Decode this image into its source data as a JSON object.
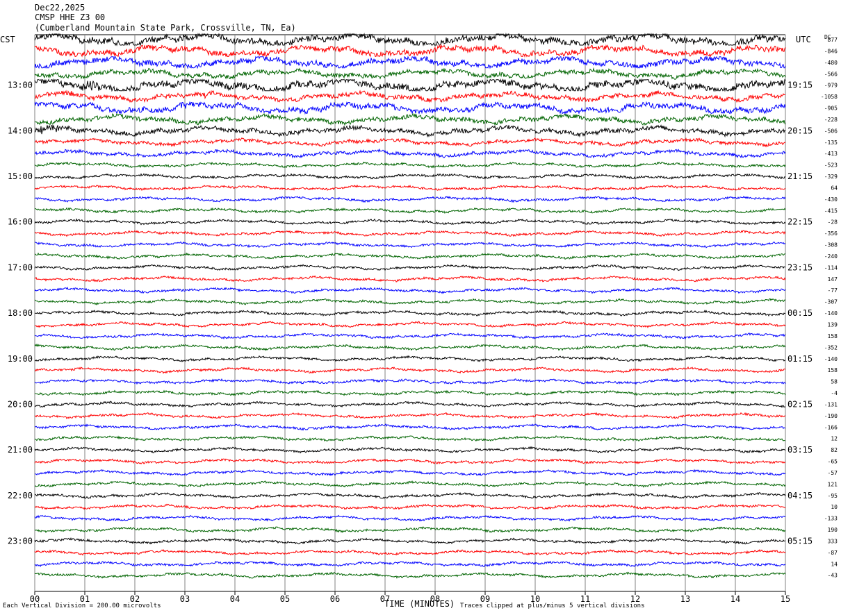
{
  "header": {
    "date": "Dec22,2025",
    "station": "CMSP HHE Z3 00",
    "location": "(Cumberland Mountain State Park, Crossville, TN, Ea)"
  },
  "left_tz": "CST",
  "right_tz": "UTC",
  "dc_label": "DC",
  "footer": {
    "scale_note": "Each Vertical Division =  200.00 microvolts",
    "x_title": "TIME (MINUTES)",
    "clip_note": "Traces clipped at plus/minus 5 vertical divisions"
  },
  "colors": {
    "cycle": [
      "#000000",
      "#ff0000",
      "#0000ff",
      "#006400"
    ],
    "grid": "#808080"
  },
  "chart_data": {
    "type": "line",
    "title": "CMSP HHE Z3 00",
    "xlabel": "TIME (MINUTES)",
    "xlim": [
      0,
      15
    ],
    "x_ticks": [
      "00",
      "01",
      "02",
      "03",
      "04",
      "05",
      "06",
      "07",
      "08",
      "09",
      "10",
      "11",
      "12",
      "13",
      "14",
      "15"
    ],
    "trace_count": 48,
    "left_hour_labels": [
      {
        "trace": 4,
        "label": "13:00"
      },
      {
        "trace": 8,
        "label": "14:00"
      },
      {
        "trace": 12,
        "label": "15:00"
      },
      {
        "trace": 16,
        "label": "16:00"
      },
      {
        "trace": 20,
        "label": "17:00"
      },
      {
        "trace": 24,
        "label": "18:00"
      },
      {
        "trace": 28,
        "label": "19:00"
      },
      {
        "trace": 32,
        "label": "20:00"
      },
      {
        "trace": 36,
        "label": "21:00"
      },
      {
        "trace": 40,
        "label": "22:00"
      },
      {
        "trace": 44,
        "label": "23:00"
      }
    ],
    "right_hour_labels": [
      {
        "trace": 4,
        "label": "19:15"
      },
      {
        "trace": 8,
        "label": "20:15"
      },
      {
        "trace": 12,
        "label": "21:15"
      },
      {
        "trace": 16,
        "label": "22:15"
      },
      {
        "trace": 20,
        "label": "23:15"
      },
      {
        "trace": 24,
        "label": "00:15"
      },
      {
        "trace": 28,
        "label": "01:15"
      },
      {
        "trace": 32,
        "label": "02:15"
      },
      {
        "trace": 36,
        "label": "03:15"
      },
      {
        "trace": 40,
        "label": "04:15"
      },
      {
        "trace": 44,
        "label": "05:15"
      }
    ],
    "dc_offsets": [
      "877",
      "-846",
      "-480",
      "-566",
      "-979",
      "-1058",
      "-905",
      "-228",
      "-506",
      "-135",
      "-413",
      "-523",
      "-329",
      "64",
      "-430",
      "-415",
      "-28",
      "-356",
      "-308",
      "-240",
      "-114",
      "147",
      "-77",
      "-307",
      "-140",
      "139",
      "158",
      "-352",
      "-140",
      "158",
      "58",
      "-4",
      "-131",
      "-190",
      "-166",
      "12",
      "82",
      "-65",
      "-57",
      "121",
      "-95",
      "10",
      "-133",
      "190",
      "333",
      "-87",
      "14",
      "-43"
    ],
    "trace_amplitude_divisions": [
      6,
      5,
      5,
      4,
      6,
      4,
      5,
      4,
      4,
      3,
      3,
      2,
      2,
      2,
      2,
      2,
      2,
      2,
      2,
      2,
      2,
      2,
      2,
      2,
      2,
      2,
      2,
      2,
      2,
      2,
      2,
      2,
      2,
      2,
      2,
      2,
      2,
      2,
      2,
      2,
      2,
      2,
      2,
      2,
      2,
      2,
      2,
      2
    ],
    "events": [
      {
        "trace": 4,
        "minute": 1.1,
        "note": "burst"
      },
      {
        "trace": 5,
        "minute": 0.75,
        "note": "spike"
      },
      {
        "trace": 5,
        "minute": 3.4,
        "note": "spike"
      },
      {
        "trace": 6,
        "minute": 3.0,
        "note": "burst"
      },
      {
        "trace": 6,
        "minute": 5.4,
        "note": "burst"
      },
      {
        "trace": 8,
        "minute": 0.3,
        "note": "burst"
      }
    ]
  }
}
